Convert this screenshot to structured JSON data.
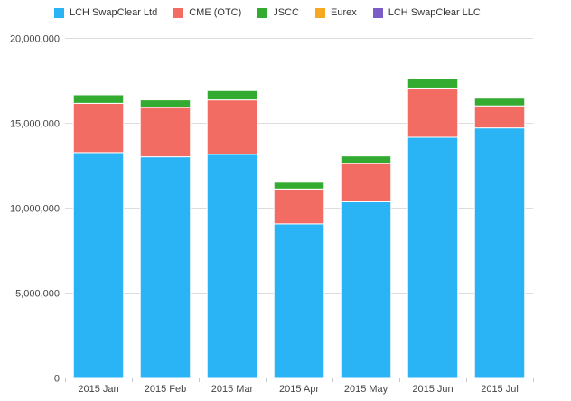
{
  "chart_data": {
    "type": "bar",
    "stacked": true,
    "categories": [
      "2015 Jan",
      "2015 Feb",
      "2015 Mar",
      "2015 Apr",
      "2015 May",
      "2015 Jun",
      "2015 Jul"
    ],
    "series": [
      {
        "name": "LCH SwapClear Ltd",
        "color": "#2ab3f5",
        "values": [
          13250000,
          13000000,
          13150000,
          9050000,
          10350000,
          14150000,
          14700000
        ]
      },
      {
        "name": "CME (OTC)",
        "color": "#f26c63",
        "values": [
          2900000,
          2900000,
          3200000,
          2050000,
          2250000,
          2900000,
          1300000
        ]
      },
      {
        "name": "JSCC",
        "color": "#33ab30",
        "values": [
          500000,
          450000,
          550000,
          400000,
          450000,
          550000,
          450000
        ]
      },
      {
        "name": "Eurex",
        "color": "#f6a822",
        "values": [
          0,
          0,
          0,
          0,
          0,
          0,
          0
        ]
      },
      {
        "name": "LCH SwapClear LLC",
        "color": "#7c5cc6",
        "values": [
          0,
          0,
          0,
          0,
          0,
          0,
          0
        ]
      }
    ],
    "ylim": [
      0,
      20000000
    ],
    "yticks": [
      0,
      5000000,
      10000000,
      15000000,
      20000000
    ],
    "ytick_labels": [
      "0",
      "5,000,000",
      "10,000,000",
      "15,000,000",
      "20,000,000"
    ],
    "grid": true,
    "legend_position": "top-left",
    "title": "",
    "xlabel": "",
    "ylabel": ""
  }
}
